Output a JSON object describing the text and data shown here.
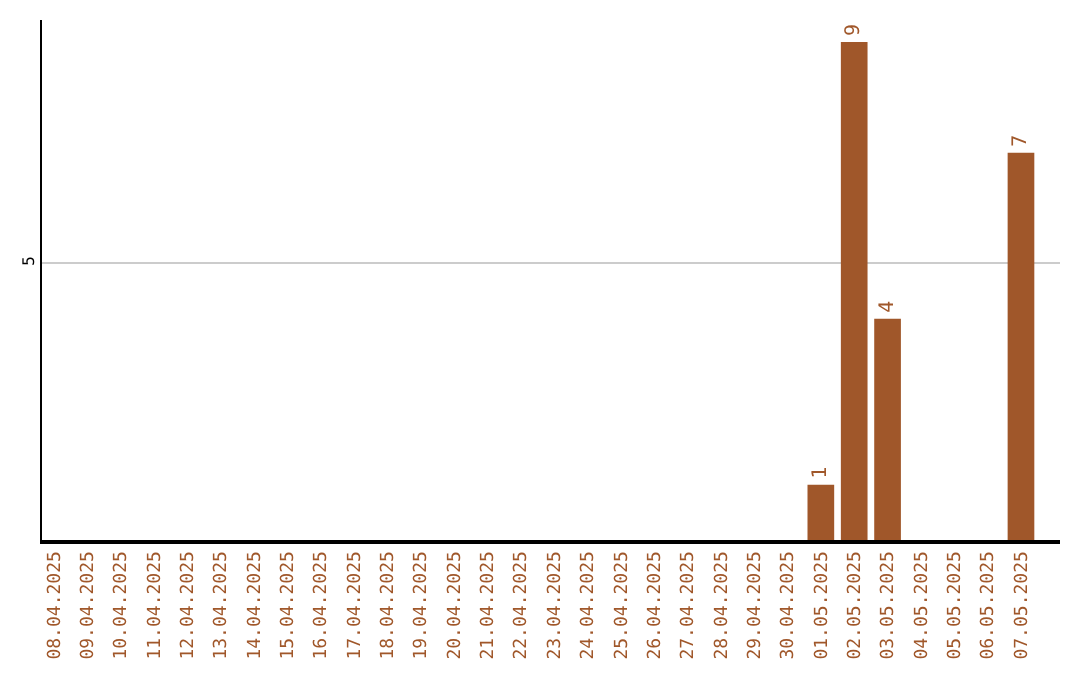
{
  "chart_data": {
    "type": "bar",
    "categories": [
      "08.04.2025",
      "09.04.2025",
      "10.04.2025",
      "11.04.2025",
      "12.04.2025",
      "13.04.2025",
      "14.04.2025",
      "15.04.2025",
      "16.04.2025",
      "17.04.2025",
      "18.04.2025",
      "19.04.2025",
      "20.04.2025",
      "21.04.2025",
      "22.04.2025",
      "23.04.2025",
      "24.04.2025",
      "25.04.2025",
      "26.04.2025",
      "27.04.2025",
      "28.04.2025",
      "29.04.2025",
      "30.04.2025",
      "01.05.2025",
      "02.05.2025",
      "03.05.2025",
      "04.05.2025",
      "05.05.2025",
      "06.05.2025",
      "07.05.2025"
    ],
    "values": [
      null,
      null,
      null,
      null,
      null,
      null,
      null,
      null,
      null,
      null,
      null,
      null,
      null,
      null,
      null,
      null,
      null,
      null,
      null,
      null,
      null,
      null,
      null,
      1,
      9,
      4,
      null,
      null,
      null,
      7
    ],
    "data_labels": true,
    "color": "#a0572a",
    "ylim": [
      0,
      9.4
    ],
    "yticks": [
      5
    ],
    "grid": "y"
  }
}
